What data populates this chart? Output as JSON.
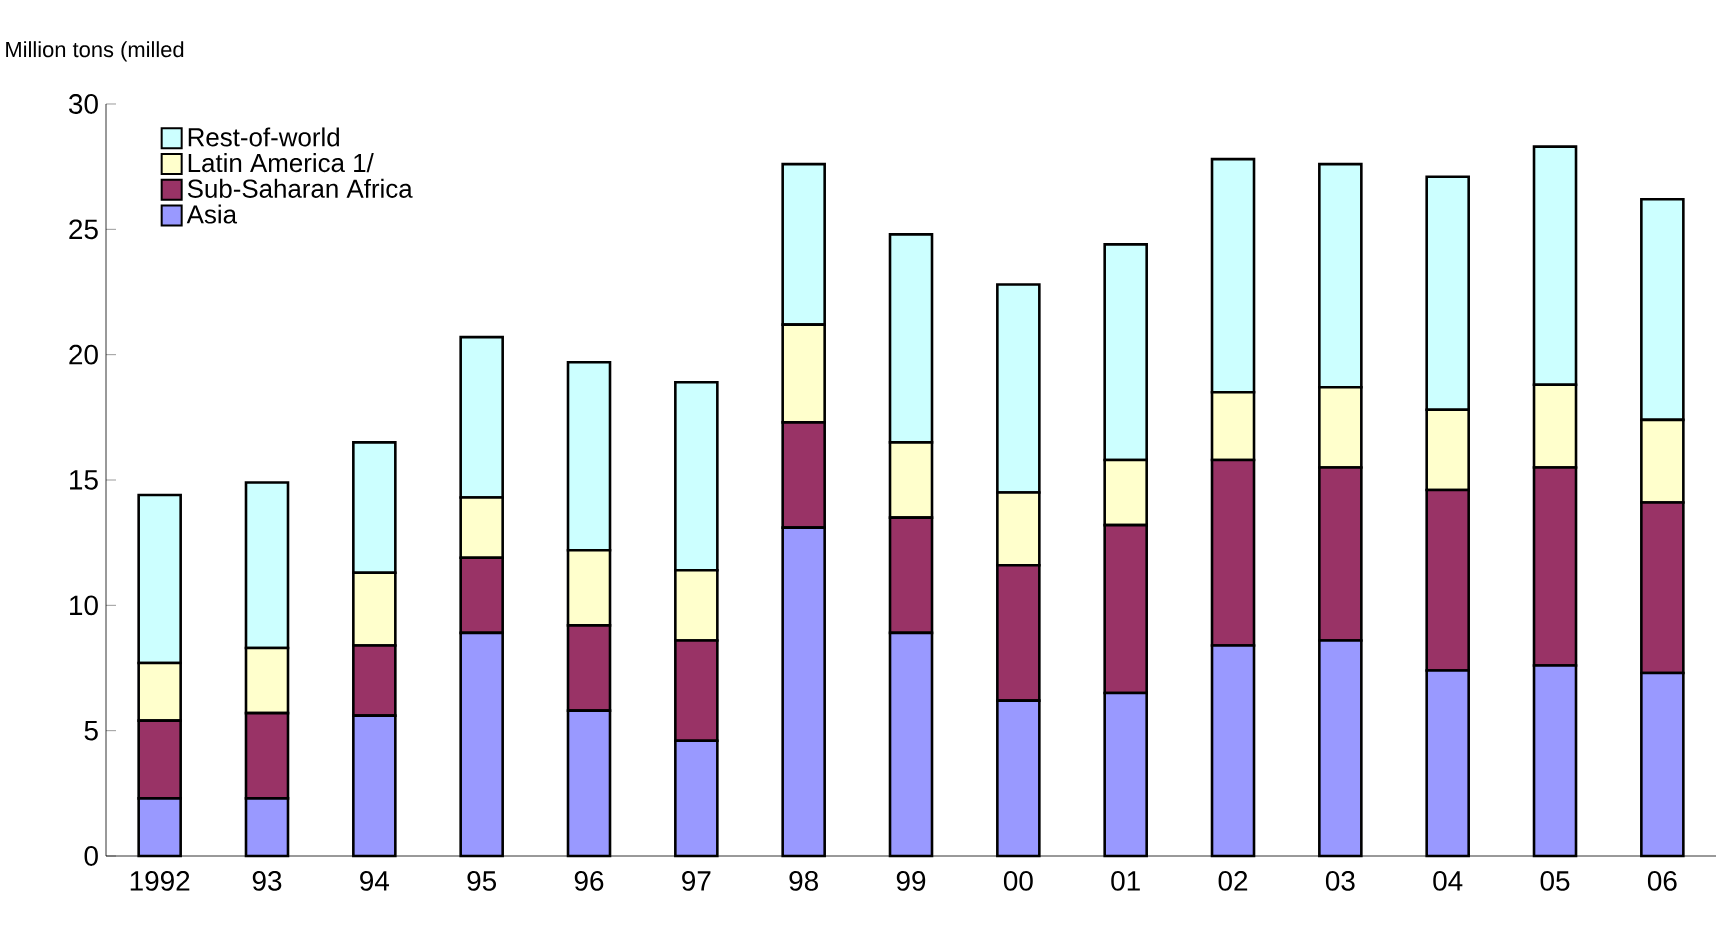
{
  "chart_data": {
    "type": "bar",
    "stacked": true,
    "ylabel": "Million tons (milled",
    "categories": [
      "1992",
      "93",
      "94",
      "95",
      "96",
      "97",
      "98",
      "99",
      "00",
      "01",
      "02",
      "03",
      "04",
      "05",
      "06"
    ],
    "series": [
      {
        "name": "Asia",
        "color": "#9999ff",
        "values": [
          2.3,
          2.3,
          5.6,
          8.9,
          5.8,
          4.6,
          13.1,
          8.9,
          6.2,
          6.5,
          8.4,
          8.6,
          7.4,
          7.6,
          7.3
        ]
      },
      {
        "name": "Sub-Saharan Africa",
        "color": "#993366",
        "values": [
          3.1,
          3.4,
          2.8,
          3.0,
          3.4,
          4.0,
          4.2,
          4.6,
          5.4,
          6.7,
          7.4,
          6.9,
          7.2,
          7.9,
          6.8
        ]
      },
      {
        "name": "Latin America 1/",
        "color": "#ffffcc",
        "values": [
          2.3,
          2.6,
          2.9,
          2.4,
          3.0,
          2.8,
          3.9,
          3.0,
          2.9,
          2.6,
          2.7,
          3.2,
          3.2,
          3.3,
          3.3
        ]
      },
      {
        "name": "Rest-of-world",
        "color": "#ccffff",
        "values": [
          6.7,
          6.6,
          5.2,
          6.4,
          7.5,
          7.5,
          6.4,
          8.3,
          8.3,
          8.6,
          9.3,
          8.9,
          9.3,
          9.5,
          8.8
        ]
      }
    ],
    "ylim": [
      0,
      30
    ],
    "yticks": [
      0,
      5,
      10,
      15,
      20,
      25,
      30
    ],
    "legend": "top left"
  }
}
